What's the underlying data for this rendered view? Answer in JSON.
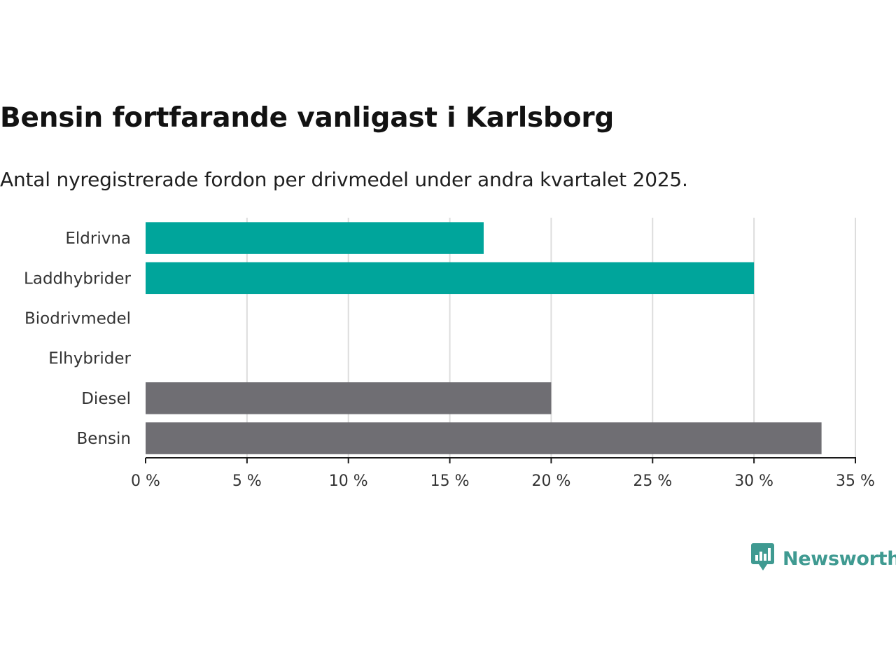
{
  "title": "Bensin fortfarande vanligast i Karlsborg",
  "subtitle": "Antal nyregistrerade fordon per drivmedel under andra kvartalet 2025.",
  "logo": {
    "text": "Newsworthy",
    "icon": "newsworthy-chart-icon",
    "color": "#3f9a91"
  },
  "colors": {
    "electric": "#00a59b",
    "fossil": "#6f6e73",
    "grid": "#dddddd",
    "axis": "#1a1a1a"
  },
  "chart_data": {
    "type": "bar",
    "orientation": "horizontal",
    "categories": [
      "Eldrivna",
      "Laddhybrider",
      "Biodrivmedel",
      "Elhybrider",
      "Diesel",
      "Bensin"
    ],
    "values": [
      16.67,
      30.0,
      0,
      0,
      20.0,
      33.33
    ],
    "bar_colors": [
      "#00a59b",
      "#00a59b",
      "#00a59b",
      "#00a59b",
      "#6f6e73",
      "#6f6e73"
    ],
    "xlim": [
      0,
      35
    ],
    "xticks": [
      0,
      5,
      10,
      15,
      20,
      25,
      30,
      35
    ],
    "tick_labels": [
      "0 %",
      "5 %",
      "10 %",
      "15 %",
      "20 %",
      "25 %",
      "30 %",
      "35 %"
    ],
    "grid": true,
    "legend": "none"
  }
}
